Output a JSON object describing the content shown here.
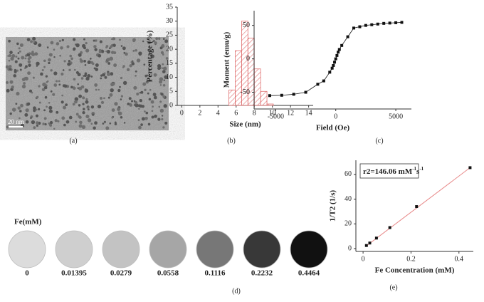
{
  "panel_labels": [
    "(a)",
    "(b)",
    "(c)",
    "(d)",
    "(e)"
  ],
  "tem_image": {
    "scale_bar": "20 nm"
  },
  "phantom": {
    "title": "Fe(mM)",
    "concentrations": [
      0,
      0.01395,
      0.0279,
      0.0558,
      0.1116,
      0.2232,
      0.4464
    ],
    "colors": [
      "#dcdcdc",
      "#cfcfcf",
      "#c3c3c3",
      "#a6a6a6",
      "#777777",
      "#383838",
      "#111111"
    ]
  },
  "chart_data": [
    {
      "type": "histogram",
      "xlabel": "Size (nm)",
      "ylabel": "Percentage (%)",
      "bins": [
        5.2,
        5.9,
        6.6,
        7.3,
        8.0,
        8.7,
        9.4,
        10.1
      ],
      "counts": [
        5.5,
        19.5,
        30,
        24,
        13,
        5,
        0.5
      ],
      "color": "#e07070",
      "xlim": [
        -0.5,
        14.5
      ],
      "ylim": [
        0,
        35
      ],
      "xticks": [
        0,
        2,
        4,
        6,
        8,
        10,
        12,
        14
      ],
      "yticks": [
        0,
        5,
        10,
        15,
        20,
        25,
        30,
        35
      ]
    },
    {
      "type": "line",
      "xlabel": "Field (Oe)",
      "ylabel": "Moment (emu/g)",
      "x": [
        -5500,
        -4500,
        -3500,
        -2500,
        -1500,
        -1000,
        -500,
        -300,
        -200,
        -100,
        0,
        100,
        200,
        300,
        500,
        1000,
        1500,
        2000,
        2500,
        3000,
        3500,
        4000,
        4500,
        5000,
        5500
      ],
      "values": [
        -55,
        -54.5,
        -53,
        -50,
        -38,
        -33,
        -20,
        -14,
        -10,
        -5,
        0,
        5,
        10,
        14,
        20,
        33,
        46,
        48,
        50,
        51,
        52,
        53,
        53.5,
        54,
        54.5
      ],
      "color": "#111111",
      "xlim": [
        -6800,
        6300
      ],
      "ylim": [
        -75,
        72
      ],
      "xticks": [
        -5000,
        0,
        5000
      ],
      "yticks": [
        -50,
        0,
        50
      ]
    },
    {
      "type": "scatter",
      "xlabel": "Fe Concentration (mM)",
      "ylabel": "1/T2 (1/s)",
      "annotation": [
        "r2=146.06 mM",
        "-1",
        "s",
        "-1"
      ],
      "x": [
        0.01395,
        0.0279,
        0.0558,
        0.1116,
        0.2232,
        0.4464
      ],
      "values": [
        2.5,
        4.5,
        8.5,
        17,
        34,
        65.5
      ],
      "trendline": {
        "x": [
          0.01395,
          0.4464
        ],
        "values": [
          2.2,
          65.5
        ],
        "color": "#e88a8a"
      },
      "color": "#111111",
      "xlim": [
        -0.03,
        0.46
      ],
      "ylim": [
        -2.3,
        71.5
      ],
      "xticks": [
        0,
        0.2,
        0.4
      ],
      "yticks": [
        0,
        20,
        40,
        60
      ]
    }
  ]
}
